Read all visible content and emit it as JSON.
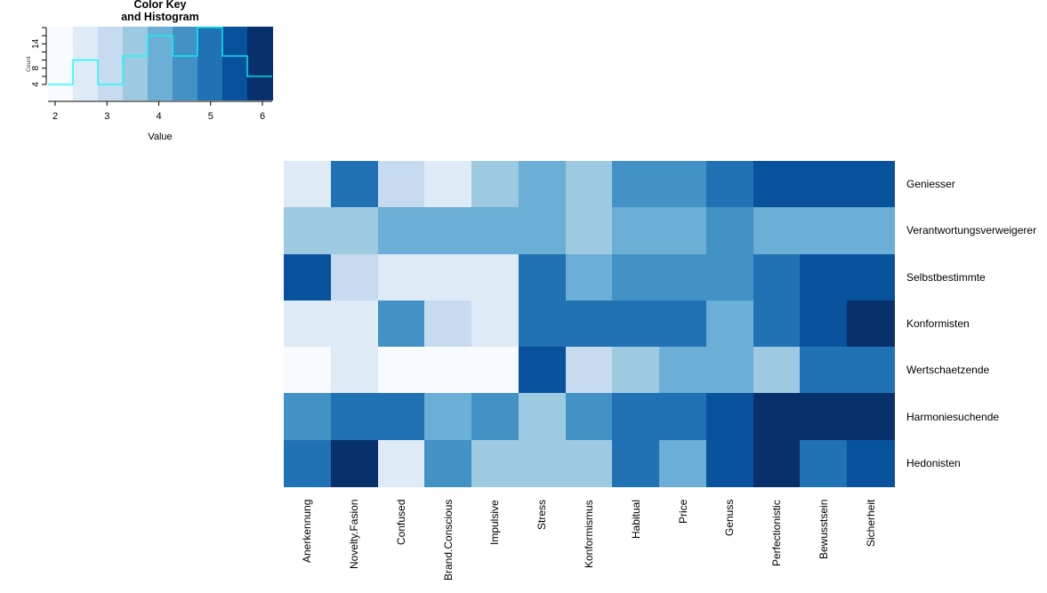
{
  "palette": [
    "#F7FBFF",
    "#DEEBF7",
    "#C6DBEF",
    "#9ECAE1",
    "#6BAED6",
    "#4292C6",
    "#2171B5",
    "#08519C",
    "#08306B"
  ],
  "histogram_line_color": "#00FFFF",
  "color_key": {
    "title_line1": "Color Key",
    "title_line2": "and Histogram",
    "x_label": "Value",
    "y_label": "Count",
    "x_ticks": [
      "2",
      "3",
      "4",
      "5",
      "6"
    ],
    "y_ticks_labeled": [
      "4",
      "8",
      "14"
    ]
  },
  "chart_data": {
    "type": "heatmap",
    "title": "",
    "xlabel": "",
    "ylabel": "",
    "rows": [
      "Geniesser",
      "Verantwortungsverweigerer",
      "Selbstbestimmte",
      "Konformisten",
      "Wertschaetzende",
      "Harmoniesuchende",
      "Hedonisten"
    ],
    "columns": [
      "Anerkennung",
      "Novelty.Fasion",
      "Confused",
      "Brand.Conscious",
      "Impulsive",
      "Stress",
      "Konformismus",
      "Habitual",
      "Price",
      "Genuss",
      "Perfectionistic",
      "Bewusstsein",
      "Sicherheit"
    ],
    "color_bin_levels": [
      [
        2,
        7,
        3,
        2,
        4,
        5,
        4,
        6,
        6,
        7,
        8,
        8,
        8
      ],
      [
        4,
        4,
        5,
        5,
        5,
        5,
        4,
        5,
        5,
        6,
        5,
        5,
        5
      ],
      [
        8,
        3,
        2,
        2,
        2,
        7,
        5,
        6,
        6,
        6,
        7,
        8,
        8
      ],
      [
        2,
        2,
        6,
        3,
        2,
        7,
        7,
        7,
        7,
        5,
        7,
        8,
        9
      ],
      [
        1,
        2,
        1,
        1,
        1,
        8,
        3,
        4,
        5,
        5,
        4,
        7,
        7
      ],
      [
        6,
        7,
        7,
        5,
        6,
        4,
        6,
        7,
        7,
        8,
        9,
        9,
        9
      ],
      [
        7,
        9,
        2,
        6,
        4,
        4,
        4,
        7,
        5,
        8,
        9,
        7,
        8
      ]
    ],
    "values": [
      [
        2.6,
        4.95,
        3.05,
        2.6,
        3.55,
        4.0,
        3.55,
        4.5,
        4.5,
        4.95,
        5.45,
        5.45,
        5.45
      ],
      [
        3.55,
        3.55,
        4.0,
        4.0,
        4.0,
        4.0,
        3.55,
        4.0,
        4.0,
        4.5,
        4.0,
        4.0,
        4.0
      ],
      [
        5.45,
        3.05,
        2.6,
        2.6,
        2.6,
        4.95,
        4.0,
        4.5,
        4.5,
        4.5,
        4.95,
        5.45,
        5.45
      ],
      [
        2.6,
        2.6,
        4.5,
        3.05,
        2.6,
        4.95,
        4.95,
        4.95,
        4.95,
        4.0,
        4.95,
        5.45,
        5.95
      ],
      [
        2.1,
        2.6,
        2.1,
        2.1,
        2.1,
        5.45,
        3.05,
        3.55,
        4.0,
        4.0,
        3.55,
        4.95,
        4.95
      ],
      [
        4.5,
        4.95,
        4.95,
        4.0,
        4.5,
        3.55,
        4.5,
        4.95,
        4.95,
        5.45,
        5.95,
        5.95,
        5.95
      ],
      [
        4.95,
        5.95,
        2.6,
        4.5,
        3.55,
        3.55,
        3.55,
        4.95,
        4.0,
        5.45,
        5.95,
        4.95,
        5.45
      ]
    ],
    "value_range": [
      1.86,
      6.21
    ],
    "color_key_histogram": {
      "bins": 9,
      "bin_edges": [
        1.86,
        2.34,
        2.83,
        3.31,
        3.79,
        4.28,
        4.76,
        5.24,
        5.73,
        6.21
      ],
      "counts": [
        4,
        10,
        4,
        11,
        16,
        11,
        18,
        11,
        6
      ],
      "xlim": [
        1.86,
        6.21
      ],
      "ylim": [
        0,
        18
      ]
    }
  }
}
